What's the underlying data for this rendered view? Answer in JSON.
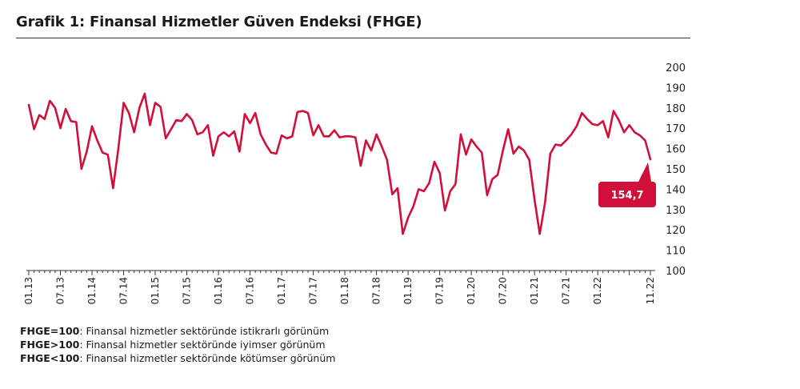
{
  "chart_data": {
    "type": "line",
    "title": "Grafik 1: Finansal Hizmetler Güven Endeksi (FHGE)",
    "y_ticks": [
      "100",
      "110",
      "120",
      "130",
      "140",
      "150",
      "160",
      "170",
      "180",
      "190",
      "200"
    ],
    "ylim": [
      100,
      200
    ],
    "x_tick_labels": [
      "01.13",
      "07.13",
      "01.14",
      "07.14",
      "01.15",
      "07.15",
      "01.16",
      "07.16",
      "01.17",
      "07.17",
      "01.18",
      "07.18",
      "01.19",
      "07.19",
      "01.20",
      "07.20",
      "01.21",
      "07.21",
      "01.22",
      "11.22"
    ],
    "x_start": "01.13",
    "x_end": "11.22",
    "series": [
      {
        "color": "#d0103a",
        "values": [
          181.5,
          169.5,
          176.5,
          174.5,
          183.5,
          180,
          170,
          179.5,
          173.5,
          173,
          150,
          158.5,
          171,
          164,
          158,
          157,
          140.5,
          160,
          182.5,
          177.5,
          168,
          180,
          187,
          171.5,
          182.5,
          180.5,
          165,
          169.5,
          174,
          173.5,
          177,
          174,
          167,
          168,
          171.5,
          156.5,
          166,
          168,
          166,
          168.5,
          158.5,
          177,
          172.5,
          177.5,
          167,
          162,
          158,
          157.5,
          166.5,
          165,
          166,
          178,
          178.5,
          177.5,
          166.5,
          171.5,
          166,
          166,
          169,
          165.5,
          166,
          166,
          165.5,
          151.5,
          164,
          159,
          167,
          161,
          154.5,
          137.5,
          140.5,
          118,
          126,
          131.5,
          140,
          139,
          143,
          153.5,
          148,
          129.5,
          139,
          142.5,
          167,
          157,
          164.5,
          161,
          158,
          137,
          145,
          147,
          159,
          169.5,
          157.5,
          161,
          159,
          154.5,
          135,
          118,
          133.5,
          157.5,
          162,
          161.5,
          164,
          167,
          171,
          177.5,
          174.5,
          172,
          171.5,
          173.5,
          165.5,
          178.5,
          174,
          168,
          171.5,
          168,
          166.5,
          164,
          154.7
        ]
      }
    ],
    "last_value_label": "154,7",
    "grid": false,
    "legend": "none"
  },
  "notes": [
    {
      "key": "FHGE=100",
      "text": ": Finansal hizmetler sektöründe istikrarlı görünüm"
    },
    {
      "key": "FHGE>100",
      "text": ": Finansal hizmetler sektöründe iyimser görünüm"
    },
    {
      "key": "FHGE<100",
      "text": ": Finansal hizmetler sektöründe kötümser görünüm"
    }
  ]
}
